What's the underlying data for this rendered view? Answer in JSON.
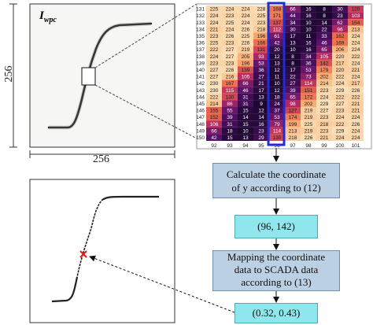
{
  "image_label": "I",
  "image_label_sub": "wpc",
  "dimension_height": "256",
  "dimension_width": "256",
  "heatmap": {
    "row_labels": [
      "131",
      "132",
      "133",
      "134",
      "135",
      "136",
      "137",
      "138",
      "139",
      "140",
      "141",
      "142",
      "143",
      "144",
      "145",
      "146",
      "147",
      "148",
      "149",
      "150"
    ],
    "col_labels": [
      "92",
      "93",
      "94",
      "95",
      "96",
      "97",
      "98",
      "99",
      "100",
      "101"
    ],
    "values": [
      [
        225,
        224,
        224,
        228,
        168,
        66,
        16,
        8,
        30,
        120
      ],
      [
        224,
        223,
        224,
        225,
        171,
        44,
        16,
        8,
        23,
        103
      ],
      [
        224,
        225,
        224,
        223,
        137,
        34,
        10,
        14,
        62,
        154
      ],
      [
        221,
        224,
        226,
        218,
        112,
        30,
        10,
        22,
        96,
        213
      ],
      [
        223,
        226,
        225,
        196,
        61,
        17,
        11,
        33,
        162,
        224
      ],
      [
        225,
        223,
        226,
        166,
        42,
        13,
        16,
        46,
        169,
        224
      ],
      [
        222,
        227,
        219,
        131,
        20,
        10,
        16,
        65,
        206,
        224
      ],
      [
        224,
        227,
        205,
        93,
        12,
        8,
        34,
        105,
        220,
        222
      ],
      [
        223,
        223,
        196,
        53,
        13,
        8,
        36,
        142,
        217,
        224
      ],
      [
        227,
        226,
        139,
        36,
        12,
        17,
        53,
        179,
        220,
        221
      ],
      [
        227,
        216,
        105,
        27,
        11,
        22,
        73,
        202,
        222,
        224
      ],
      [
        230,
        167,
        66,
        21,
        10,
        27,
        114,
        214,
        224,
        217
      ],
      [
        230,
        115,
        46,
        17,
        12,
        39,
        151,
        223,
        229,
        226
      ],
      [
        222,
        130,
        31,
        13,
        18,
        65,
        172,
        224,
        222,
        222
      ],
      [
        214,
        86,
        31,
        9,
        24,
        98,
        202,
        229,
        227,
        221
      ],
      [
        155,
        55,
        15,
        12,
        37,
        127,
        219,
        227,
        223,
        221
      ],
      [
        152,
        39,
        14,
        14,
        53,
        174,
        219,
        223,
        224,
        224
      ],
      [
        106,
        31,
        15,
        16,
        79,
        199,
        225,
        218,
        222,
        226
      ],
      [
        66,
        18,
        10,
        23,
        114,
        213,
        219,
        223,
        229,
        224
      ],
      [
        42,
        15,
        13,
        29,
        130,
        218,
        226,
        221,
        224,
        224
      ]
    ]
  },
  "flow": {
    "step1": [
      "Calculate the coordinate",
      "of y according to (12)"
    ],
    "result1": "(96, 142)",
    "step2": [
      "Mapping the coordinate",
      "data to SCADA data",
      "according to (13)"
    ],
    "result2": "(0.32, 0.43)"
  },
  "colors": {
    "flow_box_fill": "#bcd0e4",
    "value_box_fill": "#8fe6ec",
    "highlight": "#1c2ed6",
    "marker": "#e01a1a"
  }
}
